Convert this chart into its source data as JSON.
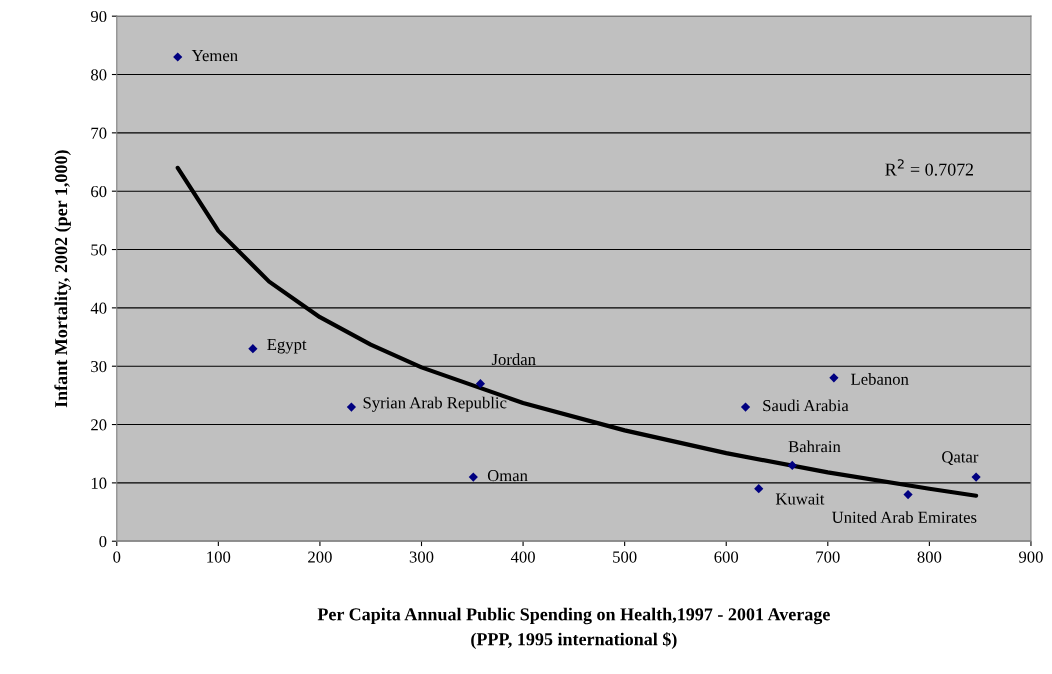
{
  "chart_data": {
    "type": "scatter",
    "xlabel": "Per Capita Annual Public Spending on Health,1997 - 2001 Average\n(PPP, 1995 international $)",
    "ylabel": "Infant Mortality, 2002 (per 1,000)",
    "series": [
      {
        "color": "#000080",
        "marker": "diamond",
        "x": [
          60,
          134,
          231,
          358,
          351,
          619,
          706,
          665,
          632,
          779,
          846
        ],
        "values": [
          83,
          33,
          23,
          27,
          11,
          23,
          28,
          13,
          9,
          8,
          11
        ]
      },
      {
        "type": "line",
        "color": "#000000",
        "marker": "none",
        "x": [
          60,
          100,
          150,
          200,
          250,
          300,
          400,
          500,
          600,
          700,
          800,
          846
        ],
        "values": [
          64,
          53.2,
          44.5,
          38.4,
          33.7,
          29.8,
          23.7,
          19.0,
          15.1,
          11.8,
          9.0,
          7.8
        ]
      }
    ],
    "annotations": [
      {
        "text": "Yemen",
        "x": 60,
        "y": 83
      },
      {
        "text": "Egypt",
        "x": 134,
        "y": 33
      },
      {
        "text": "Syrian Arab Republic",
        "x": 231,
        "y": 23
      },
      {
        "text": "Jordan",
        "x": 358,
        "y": 27
      },
      {
        "text": "Oman",
        "x": 351,
        "y": 11
      },
      {
        "text": "Saudi Arabia",
        "x": 619,
        "y": 23
      },
      {
        "text": "Lebanon",
        "x": 706,
        "y": 28
      },
      {
        "text": "Bahrain",
        "x": 665,
        "y": 13
      },
      {
        "text": "Kuwait",
        "x": 632,
        "y": 9
      },
      {
        "text": "United Arab Emirates",
        "x": 779,
        "y": 8
      },
      {
        "text": "Qatar",
        "x": 846,
        "y": 11
      },
      "R$^{2}$ = 0.7072"
    ],
    "xlim": [
      0,
      900
    ],
    "xticks": [
      0,
      100,
      200,
      300,
      400,
      500,
      600,
      700,
      800,
      900
    ],
    "ylim": [
      0,
      90
    ],
    "yticks": [
      0,
      10,
      20,
      30,
      40,
      50,
      60,
      70,
      80,
      90
    ],
    "grid": "y",
    "legend": false
  }
}
